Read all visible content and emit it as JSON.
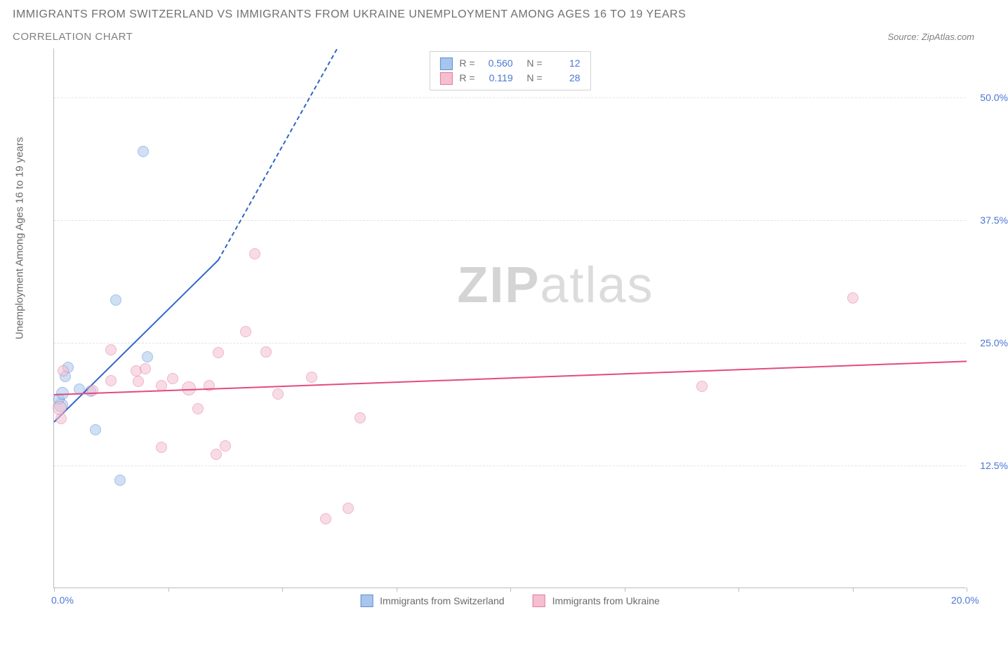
{
  "title": "IMMIGRANTS FROM SWITZERLAND VS IMMIGRANTS FROM UKRAINE UNEMPLOYMENT AMONG AGES 16 TO 19 YEARS",
  "subtitle": "CORRELATION CHART",
  "source_label": "Source: ZipAtlas.com",
  "ylabel": "Unemployment Among Ages 16 to 19 years",
  "watermark_a": "ZIP",
  "watermark_b": "atlas",
  "chart": {
    "type": "scatter",
    "xlim": [
      0,
      20
    ],
    "ylim": [
      0,
      55
    ],
    "x_ticks": [
      0,
      2.5,
      5,
      7.5,
      10,
      12.5,
      15,
      17.5,
      20
    ],
    "x_tick_labels": {
      "0": "0.0%",
      "20": "20.0%"
    },
    "y_grid": [
      12.5,
      25,
      37.5,
      50
    ],
    "y_labels": [
      "12.5%",
      "25.0%",
      "37.5%",
      "50.0%"
    ],
    "background_color": "#ffffff",
    "grid_color": "#e4e4e4",
    "axis_color": "#bdbdbd",
    "tick_label_color": "#4a76d4",
    "series": [
      {
        "name": "Immigrants from Switzerland",
        "key": "switzerland",
        "fill": "#a8c5ec",
        "fill_opacity": 0.55,
        "stroke": "#5b8fd6",
        "line_color": "#2f66c9",
        "marker_radius": 8,
        "R": "0.560",
        "N": "12",
        "points": [
          {
            "x": 0.15,
            "y": 18.6,
            "r": 10
          },
          {
            "x": 0.1,
            "y": 19.2,
            "r": 8
          },
          {
            "x": 0.18,
            "y": 19.8,
            "r": 9
          },
          {
            "x": 0.25,
            "y": 21.5,
            "r": 8
          },
          {
            "x": 0.3,
            "y": 22.4,
            "r": 8
          },
          {
            "x": 0.55,
            "y": 20.2,
            "r": 8
          },
          {
            "x": 0.8,
            "y": 20.0,
            "r": 8
          },
          {
            "x": 0.9,
            "y": 16.1,
            "r": 8
          },
          {
            "x": 1.45,
            "y": 10.9,
            "r": 8
          },
          {
            "x": 1.35,
            "y": 29.3,
            "r": 8
          },
          {
            "x": 2.05,
            "y": 23.5,
            "r": 8
          },
          {
            "x": 1.95,
            "y": 44.4,
            "r": 8
          }
        ],
        "trend": {
          "x1": 0.0,
          "y1": 17.0,
          "x2": 3.6,
          "y2": 33.5,
          "dash_to_x": 6.2,
          "dash_to_y": 55.0
        }
      },
      {
        "name": "Immigrants from Ukraine",
        "key": "ukraine",
        "fill": "#f5bfd0",
        "fill_opacity": 0.55,
        "stroke": "#e07ba1",
        "line_color": "#e24a84",
        "marker_radius": 9,
        "R": "0.119",
        "N": "28",
        "points": [
          {
            "x": 0.15,
            "y": 17.2,
            "r": 8
          },
          {
            "x": 0.12,
            "y": 18.3,
            "r": 10
          },
          {
            "x": 0.2,
            "y": 22.1,
            "r": 8
          },
          {
            "x": 0.85,
            "y": 20.1,
            "r": 8
          },
          {
            "x": 1.25,
            "y": 21.1,
            "r": 8
          },
          {
            "x": 1.25,
            "y": 24.2,
            "r": 8
          },
          {
            "x": 1.8,
            "y": 22.1,
            "r": 8
          },
          {
            "x": 1.85,
            "y": 21.0,
            "r": 8
          },
          {
            "x": 2.0,
            "y": 22.3,
            "r": 8
          },
          {
            "x": 2.35,
            "y": 20.6,
            "r": 8
          },
          {
            "x": 2.35,
            "y": 14.3,
            "r": 8
          },
          {
            "x": 2.6,
            "y": 21.3,
            "r": 8
          },
          {
            "x": 2.95,
            "y": 20.3,
            "r": 10
          },
          {
            "x": 3.15,
            "y": 18.2,
            "r": 8
          },
          {
            "x": 3.4,
            "y": 20.6,
            "r": 8
          },
          {
            "x": 3.55,
            "y": 13.6,
            "r": 8
          },
          {
            "x": 3.6,
            "y": 23.9,
            "r": 8
          },
          {
            "x": 3.75,
            "y": 14.4,
            "r": 8
          },
          {
            "x": 4.4,
            "y": 34.0,
            "r": 8
          },
          {
            "x": 4.2,
            "y": 26.1,
            "r": 8
          },
          {
            "x": 4.65,
            "y": 24.0,
            "r": 8
          },
          {
            "x": 4.9,
            "y": 19.7,
            "r": 8
          },
          {
            "x": 5.65,
            "y": 21.4,
            "r": 8
          },
          {
            "x": 5.95,
            "y": 7.0,
            "r": 8
          },
          {
            "x": 6.45,
            "y": 8.1,
            "r": 8
          },
          {
            "x": 6.7,
            "y": 17.3,
            "r": 8
          },
          {
            "x": 14.2,
            "y": 20.5,
            "r": 8
          },
          {
            "x": 17.5,
            "y": 29.5,
            "r": 8
          }
        ],
        "trend": {
          "x1": 0.0,
          "y1": 19.8,
          "x2": 20.0,
          "y2": 23.2
        }
      }
    ]
  },
  "legend_box": {
    "r_label": "R =",
    "n_label": "N ="
  },
  "bottom_legend": [
    {
      "label": "Immigrants from Switzerland",
      "fill": "#a8c5ec",
      "stroke": "#5b8fd6"
    },
    {
      "label": "Immigrants from Ukraine",
      "fill": "#f5bfd0",
      "stroke": "#e07ba1"
    }
  ]
}
